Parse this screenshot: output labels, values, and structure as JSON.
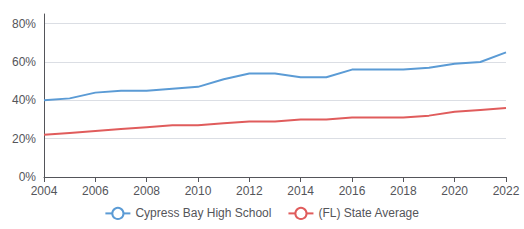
{
  "chart_data": {
    "type": "line",
    "x": [
      2004,
      2005,
      2006,
      2007,
      2008,
      2009,
      2010,
      2011,
      2012,
      2013,
      2014,
      2015,
      2016,
      2017,
      2018,
      2019,
      2020,
      2021,
      2022
    ],
    "series": [
      {
        "name": "Cypress Bay High School",
        "color": "#5b9bd5",
        "values": [
          0.4,
          0.41,
          0.44,
          0.45,
          0.45,
          0.46,
          0.47,
          0.51,
          0.54,
          0.54,
          0.52,
          0.52,
          0.56,
          0.56,
          0.56,
          0.57,
          0.59,
          0.6,
          0.65
        ]
      },
      {
        "name": "(FL) State Average",
        "color": "#e05c5c",
        "values": [
          0.22,
          0.23,
          0.24,
          0.25,
          0.26,
          0.27,
          0.27,
          0.28,
          0.29,
          0.29,
          0.3,
          0.3,
          0.31,
          0.31,
          0.31,
          0.32,
          0.34,
          0.35,
          0.36
        ]
      }
    ],
    "xlim": [
      2004,
      2022
    ],
    "xticks": [
      2004,
      2006,
      2008,
      2010,
      2012,
      2014,
      2016,
      2018,
      2020,
      2022
    ],
    "ylim": [
      0,
      0.85
    ],
    "yticks": [
      {
        "value": 0,
        "label": "0%"
      },
      {
        "value": 0.2,
        "label": "20%"
      },
      {
        "value": 0.4,
        "label": "40%"
      },
      {
        "value": 0.6,
        "label": "60%"
      },
      {
        "value": 0.8,
        "label": "80%"
      }
    ],
    "grid": true,
    "legend": "bottom"
  }
}
